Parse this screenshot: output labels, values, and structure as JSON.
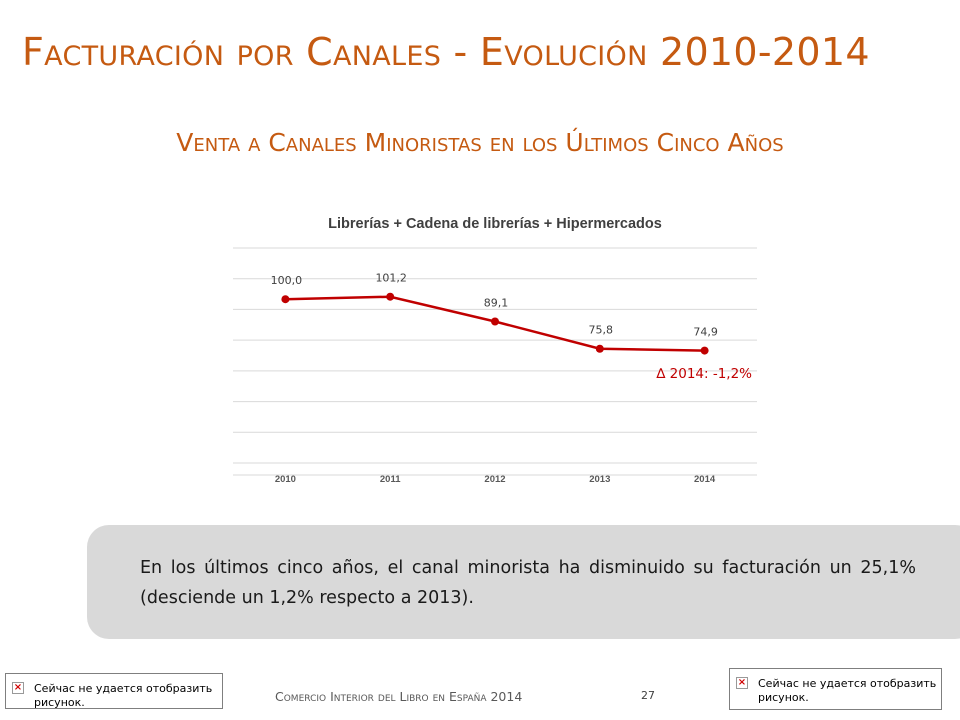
{
  "slide": {
    "title": "Facturación por Canales - Evolución 2010-2014",
    "subtitle": "Venta a Canales Minoristas en los Últimos Cinco Años",
    "note": "En los últimos cinco años, el canal minorista ha disminuido su facturación un 25,1% (desciende un 1,2% respecto a 2013).",
    "footer": "Comercio Interior del Libro en España 2014",
    "page_number": "27",
    "image_error_left": "Сейчас не удается отобразить\nрисунок.",
    "image_error_right": "Сейчас не удается отобразить\nрисунок."
  },
  "colors": {
    "accent": "#C55A11",
    "series": "#C00000",
    "grid": "#D9D9D9",
    "note_bg": "#D9D9D9"
  },
  "chart_data": {
    "type": "line",
    "title": "Librerías + Cadena de librerías + Hipermercados",
    "categories": [
      "2010",
      "2011",
      "2012",
      "2013",
      "2014"
    ],
    "series": [
      {
        "values": [
          100.0,
          101.2,
          89.1,
          75.8,
          74.9
        ],
        "labels": [
          "100,0",
          "101,2",
          "89,1",
          "75,8",
          "74,9"
        ]
      }
    ],
    "annotation": "∆ 2014: -1,2%",
    "ylim": [
      20,
      125
    ],
    "grid": true,
    "legend": "none"
  }
}
